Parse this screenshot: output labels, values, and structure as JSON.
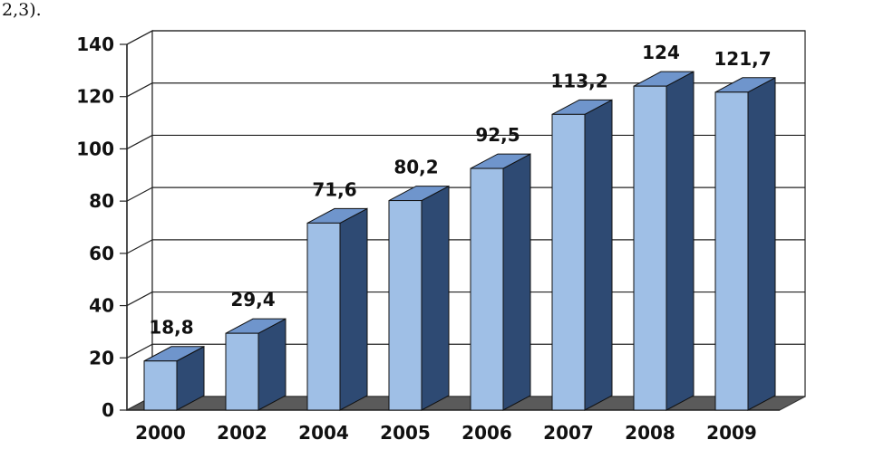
{
  "page": {
    "fragment_text": "2,3)."
  },
  "chart_data": {
    "type": "bar",
    "style": "3d",
    "categories": [
      "2000",
      "2002",
      "2004",
      "2005",
      "2006",
      "2007",
      "2008",
      "2009"
    ],
    "values": [
      18.8,
      29.4,
      71.6,
      80.2,
      92.5,
      113.2,
      124,
      121.7
    ],
    "value_labels": [
      "18,8",
      "29,4",
      "71,6",
      "80,2",
      "92,5",
      "113,2",
      "124",
      "121,7"
    ],
    "yticks": [
      0,
      20,
      40,
      60,
      80,
      100,
      120,
      140
    ],
    "ylim": [
      0,
      140
    ],
    "grid": true,
    "legend": "none",
    "colors": {
      "bar_front": "#9fbfe6",
      "bar_top": "#6f95cc",
      "bar_side": "#2e4a73",
      "floor": "#5a5a5a",
      "grid": "#222222"
    }
  }
}
